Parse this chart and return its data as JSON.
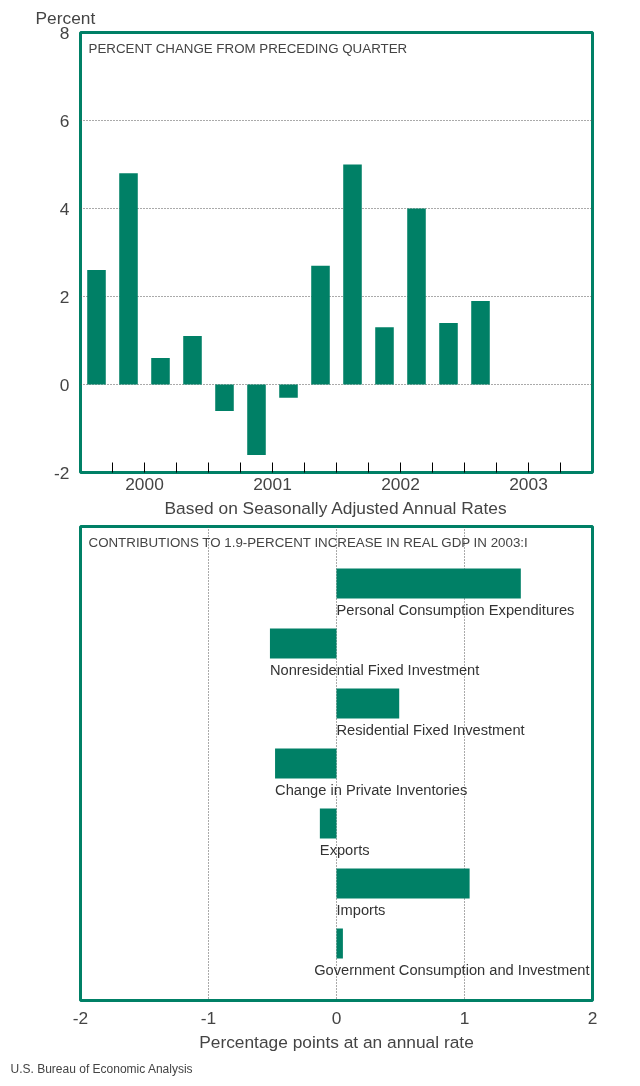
{
  "chart_data": [
    {
      "type": "bar",
      "ylabel": "Percent",
      "xlabel": "Based on Seasonally Adjusted Annual Rates",
      "annotations": [
        "PERCENT CHANGE FROM PRECEDING QUARTER"
      ],
      "x": [
        2000.125,
        2000.375,
        2000.625,
        2000.875,
        2001.125,
        2001.375,
        2001.625,
        2001.875,
        2002.125,
        2002.375,
        2002.625,
        2002.875,
        2003.125
      ],
      "values": [
        2.6,
        4.8,
        0.6,
        1.1,
        -0.6,
        -1.6,
        -0.3,
        2.7,
        5.0,
        1.3,
        4.0,
        1.4,
        1.9
      ],
      "color": "#008066",
      "xlim": [
        2000,
        2004
      ],
      "xticks": [
        {
          "value": 2000.25,
          "label": null
        },
        {
          "value": 2000.5,
          "label": "2000"
        },
        {
          "value": 2000.75,
          "label": null
        },
        {
          "value": 2001,
          "label": null
        },
        {
          "value": 2001.25,
          "label": null
        },
        {
          "value": 2001.5,
          "label": "2001"
        },
        {
          "value": 2001.75,
          "label": null
        },
        {
          "value": 2002,
          "label": null
        },
        {
          "value": 2002.25,
          "label": null
        },
        {
          "value": 2002.5,
          "label": "2002"
        },
        {
          "value": 2002.75,
          "label": null
        },
        {
          "value": 2003,
          "label": null
        },
        {
          "value": 2003.25,
          "label": null
        },
        {
          "value": 2003.5,
          "label": "2003"
        },
        {
          "value": 2003.75,
          "label": null
        }
      ],
      "ylim": [
        -2,
        8
      ],
      "yticks": [
        -2,
        0,
        2,
        4,
        6,
        8
      ],
      "grid": "y"
    },
    {
      "type": "bar",
      "orientation": "horizontal",
      "title": "CONTRIBUTIONS TO 1.9-PERCENT INCREASE IN REAL GDP IN 2003:I",
      "xlabel": "Percentage points at an annual rate",
      "annotations": [
        "U.S. Bureau of Economic Analysis"
      ],
      "categories": [
        "Personal Consumption Expenditures",
        "Nonresidential Fixed Investment",
        "Residential Fixed Investment",
        "Change in Private Inventories",
        "Exports",
        "Imports",
        "Government Consumption and Investment"
      ],
      "values": [
        1.44,
        -0.52,
        0.49,
        -0.48,
        -0.13,
        1.04,
        0.05
      ],
      "color": "#008066",
      "xlim": [
        -2,
        2
      ],
      "xticks": [
        -2,
        -1,
        0,
        1,
        2
      ],
      "grid": "x"
    }
  ]
}
